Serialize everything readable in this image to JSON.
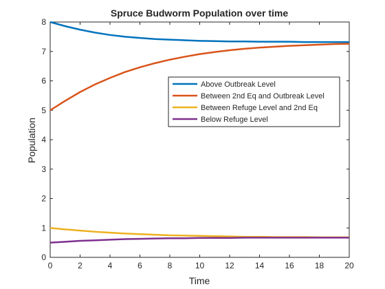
{
  "chart_data": {
    "type": "line",
    "title": "Spruce Budworm Population over time",
    "xlabel": "Time",
    "ylabel": "Population",
    "xlim": [
      0,
      20
    ],
    "ylim": [
      0,
      8
    ],
    "xticks": [
      0,
      2,
      4,
      6,
      8,
      10,
      12,
      14,
      16,
      18,
      20
    ],
    "yticks": [
      0,
      1,
      2,
      3,
      4,
      5,
      6,
      7,
      8
    ],
    "grid": false,
    "legend_position": "upper-right-middle",
    "x": [
      0,
      1,
      2,
      3,
      4,
      5,
      6,
      7,
      8,
      9,
      10,
      11,
      12,
      13,
      14,
      15,
      16,
      17,
      18,
      19,
      20
    ],
    "series": [
      {
        "name": "Above Outbreak Level",
        "color": "#0072BD",
        "values": [
          8.0,
          7.86,
          7.74,
          7.64,
          7.56,
          7.5,
          7.46,
          7.42,
          7.4,
          7.38,
          7.36,
          7.35,
          7.34,
          7.34,
          7.33,
          7.33,
          7.33,
          7.32,
          7.32,
          7.32,
          7.32
        ]
      },
      {
        "name": "Between 2nd Eq and Outbreak Level",
        "color": "#D95319",
        "values": [
          5.0,
          5.32,
          5.62,
          5.88,
          6.1,
          6.3,
          6.46,
          6.6,
          6.72,
          6.82,
          6.91,
          6.98,
          7.04,
          7.09,
          7.13,
          7.16,
          7.19,
          7.21,
          7.23,
          7.25,
          7.26
        ]
      },
      {
        "name": "Between Refuge Level and 2nd Eq",
        "color": "#EDB120",
        "values": [
          1.0,
          0.95,
          0.91,
          0.87,
          0.84,
          0.81,
          0.79,
          0.77,
          0.75,
          0.74,
          0.73,
          0.72,
          0.71,
          0.7,
          0.7,
          0.69,
          0.69,
          0.69,
          0.68,
          0.68,
          0.68
        ]
      },
      {
        "name": "Below Refuge Level",
        "color": "#7E2F8E",
        "values": [
          0.5,
          0.53,
          0.56,
          0.58,
          0.6,
          0.62,
          0.63,
          0.64,
          0.65,
          0.65,
          0.66,
          0.66,
          0.66,
          0.67,
          0.67,
          0.67,
          0.67,
          0.67,
          0.67,
          0.67,
          0.67
        ]
      }
    ]
  }
}
